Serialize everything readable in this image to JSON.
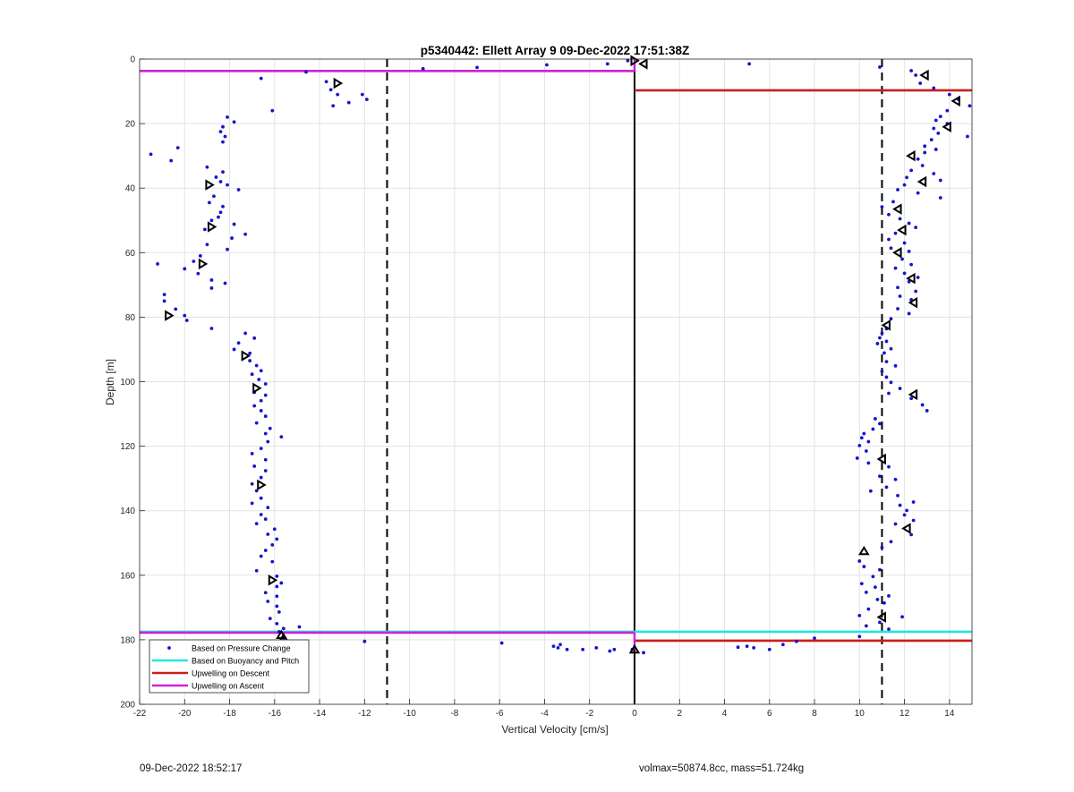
{
  "chart_data": {
    "type": "scatter",
    "title": "p5340442: Ellett Array 9 09-Dec-2022 17:51:38Z",
    "xlabel": "Vertical Velocity [cm/s]",
    "ylabel": "Depth [m]",
    "xlim": [
      -22,
      15
    ],
    "ylim": [
      0,
      200
    ],
    "y_reversed": true,
    "grid": true,
    "legend_position": "bottom-left",
    "x_ticks": [
      -22,
      -20,
      -18,
      -16,
      -14,
      -12,
      -10,
      -8,
      -6,
      -4,
      -2,
      0,
      2,
      4,
      6,
      8,
      10,
      12,
      14
    ],
    "y_ticks": [
      0,
      20,
      40,
      60,
      80,
      100,
      120,
      140,
      160,
      180,
      200
    ],
    "legend": [
      {
        "label": "Based on Pressure Change",
        "color": "#1515cc",
        "style": "dot"
      },
      {
        "label": "Based on Buoyancy and Pitch",
        "color": "#22e5e5",
        "style": "line"
      },
      {
        "label": "Upwelling on Descent",
        "color": "#cc1c1c",
        "style": "line"
      },
      {
        "label": "Upwelling on Ascent",
        "color": "#d020d8",
        "style": "line"
      }
    ],
    "reference_lines": [
      {
        "x": -11,
        "style": "dashed",
        "color": "#000000"
      },
      {
        "x": 11,
        "style": "dashed",
        "color": "#000000"
      },
      {
        "x": 0,
        "style": "solid",
        "color": "#000000"
      }
    ],
    "upwelling_ascent": [
      {
        "y": 3.7,
        "x_from": -22,
        "x_to": 0
      },
      {
        "y": 177.8,
        "x_from": -22,
        "x_to": 0
      }
    ],
    "upwelling_descent": [
      {
        "y": 9.7,
        "x_from": 0,
        "x_to": 15
      },
      {
        "y": 180.3,
        "x_from": 0,
        "x_to": 15
      }
    ],
    "buoyancy_pitch": [
      {
        "y": 177.5,
        "x_from": -22,
        "x_to": 15
      }
    ],
    "series": [
      {
        "name": "Based on Pressure Change",
        "color": "#1515cc",
        "points": [
          [
            -14.6,
            4
          ],
          [
            -9.4,
            3
          ],
          [
            -7.0,
            2.6
          ],
          [
            -3.9,
            1.8
          ],
          [
            -1.2,
            1.5
          ],
          [
            -0.3,
            0.5
          ],
          [
            5.1,
            1.5
          ],
          [
            10.9,
            2.5
          ],
          [
            12.3,
            3.6
          ],
          [
            12.5,
            5
          ],
          [
            -16.6,
            6
          ],
          [
            -13.7,
            7
          ],
          [
            -13.5,
            9.5
          ],
          [
            -13.2,
            11
          ],
          [
            -12.1,
            11
          ],
          [
            -11.9,
            12.5
          ],
          [
            -12.7,
            13.5
          ],
          [
            -13.4,
            14.5
          ],
          [
            -16.1,
            16
          ],
          [
            12.7,
            7.5
          ],
          [
            13.3,
            9
          ],
          [
            14.0,
            11
          ],
          [
            14.4,
            12.5
          ],
          [
            14.9,
            14.5
          ],
          [
            13.9,
            16
          ],
          [
            13.6,
            17.8
          ],
          [
            13.4,
            19
          ],
          [
            13.9,
            20
          ],
          [
            13.3,
            21.5
          ],
          [
            13.5,
            23
          ],
          [
            14.8,
            24
          ],
          [
            13.2,
            25
          ],
          [
            12.9,
            27
          ],
          [
            13.4,
            28
          ],
          [
            12.9,
            29
          ],
          [
            12.6,
            31
          ],
          [
            12.8,
            33
          ],
          [
            12.3,
            34.5
          ],
          [
            13.3,
            35.5
          ],
          [
            12.1,
            36.7
          ],
          [
            13.6,
            37.6
          ],
          [
            12.0,
            39
          ],
          [
            11.7,
            40.5
          ],
          [
            12.6,
            41.5
          ],
          [
            13.6,
            43
          ],
          [
            11.5,
            44.2
          ],
          [
            11.0,
            45.8
          ],
          [
            11.3,
            48.2
          ],
          [
            11.8,
            49.5
          ],
          [
            12.2,
            50.9
          ],
          [
            12.5,
            52.2
          ],
          [
            11.6,
            54
          ],
          [
            11.3,
            55.9
          ],
          [
            12.0,
            57
          ],
          [
            11.4,
            58.6
          ],
          [
            12.2,
            59.6
          ],
          [
            11.9,
            62
          ],
          [
            12.3,
            63.7
          ],
          [
            11.6,
            64.8
          ],
          [
            12.0,
            66.4
          ],
          [
            12.6,
            67.7
          ],
          [
            12.2,
            69
          ],
          [
            11.7,
            70.8
          ],
          [
            12.5,
            72
          ],
          [
            11.8,
            73.5
          ],
          [
            12.3,
            74.6
          ],
          [
            11.7,
            77.4
          ],
          [
            12.2,
            78.9
          ],
          [
            11.4,
            80.5
          ],
          [
            11.2,
            83.6
          ],
          [
            11.0,
            85
          ],
          [
            10.9,
            86.4
          ],
          [
            11.2,
            87.5
          ],
          [
            10.8,
            88.2
          ],
          [
            11.4,
            89.8
          ],
          [
            11.1,
            91.1
          ],
          [
            11.2,
            93.8
          ],
          [
            11.6,
            95.1
          ],
          [
            11.0,
            96.8
          ],
          [
            11.2,
            98.6
          ],
          [
            11.4,
            100.2
          ],
          [
            11.8,
            102.1
          ],
          [
            11.3,
            103.6
          ],
          [
            12.3,
            105.2
          ],
          [
            12.8,
            107.2
          ],
          [
            13.0,
            109
          ],
          [
            10.7,
            111.5
          ],
          [
            10.9,
            113
          ],
          [
            10.6,
            114.7
          ],
          [
            10.2,
            116.1
          ],
          [
            10.1,
            117.4
          ],
          [
            10.4,
            118.6
          ],
          [
            10.0,
            119.8
          ],
          [
            10.3,
            121.5
          ],
          [
            9.9,
            123.7
          ],
          [
            10.4,
            125.2
          ],
          [
            11.3,
            126.4
          ],
          [
            10.9,
            129.3
          ],
          [
            11.6,
            130.3
          ],
          [
            11.2,
            132.7
          ],
          [
            10.5,
            133.9
          ],
          [
            11.7,
            135.3
          ],
          [
            12.4,
            137.3
          ],
          [
            11.8,
            138.3
          ],
          [
            12.1,
            139.9
          ],
          [
            12.0,
            141.3
          ],
          [
            12.4,
            143
          ],
          [
            11.6,
            144.1
          ],
          [
            12.3,
            147.4
          ],
          [
            11.4,
            149.6
          ],
          [
            11.0,
            151.4
          ],
          [
            10.0,
            155.6
          ],
          [
            10.2,
            157.3
          ],
          [
            10.9,
            158.3
          ],
          [
            10.6,
            160.4
          ],
          [
            10.1,
            162.6
          ],
          [
            10.7,
            163.7
          ],
          [
            10.3,
            165.3
          ],
          [
            11.3,
            166.4
          ],
          [
            10.8,
            167.5
          ],
          [
            11.1,
            168.6
          ],
          [
            10.4,
            170.5
          ],
          [
            10.0,
            172.5
          ],
          [
            11.9,
            172.9
          ],
          [
            10.9,
            174.6
          ],
          [
            10.3,
            175.7
          ],
          [
            11.3,
            176.7
          ],
          [
            10.0,
            179
          ],
          [
            -18.1,
            18
          ],
          [
            -17.8,
            19.5
          ],
          [
            -18.3,
            21
          ],
          [
            -18.4,
            22.5
          ],
          [
            -18.2,
            24
          ],
          [
            -18.3,
            25.7
          ],
          [
            -20.3,
            27.5
          ],
          [
            -21.5,
            29.5
          ],
          [
            -20.6,
            31.5
          ],
          [
            -19.0,
            33.5
          ],
          [
            -18.3,
            35
          ],
          [
            -18.6,
            36.6
          ],
          [
            -18.4,
            38
          ],
          [
            -18.1,
            39
          ],
          [
            -17.6,
            40.5
          ],
          [
            -18.7,
            42.5
          ],
          [
            -18.9,
            44.5
          ],
          [
            -18.3,
            45.7
          ],
          [
            -18.4,
            47.5
          ],
          [
            -18.5,
            49
          ],
          [
            -18.8,
            50
          ],
          [
            -17.8,
            51.2
          ],
          [
            -19.1,
            52.8
          ],
          [
            -17.3,
            54.3
          ],
          [
            -17.9,
            55.5
          ],
          [
            -19.0,
            57.5
          ],
          [
            -18.1,
            59
          ],
          [
            -19.3,
            61
          ],
          [
            -19.6,
            62.7
          ],
          [
            -21.2,
            63.5
          ],
          [
            -20.0,
            65
          ],
          [
            -19.4,
            66.5
          ],
          [
            -18.8,
            68.5
          ],
          [
            -18.2,
            69.5
          ],
          [
            -18.8,
            71
          ],
          [
            -20.9,
            73
          ],
          [
            -20.9,
            75
          ],
          [
            -20.4,
            77.5
          ],
          [
            -20.0,
            79.5
          ],
          [
            -19.9,
            81
          ],
          [
            -18.8,
            83.5
          ],
          [
            -17.3,
            85
          ],
          [
            -16.9,
            86.5
          ],
          [
            -17.6,
            88
          ],
          [
            -17.8,
            90
          ],
          [
            -17.1,
            91.2
          ],
          [
            -17.1,
            93.5
          ],
          [
            -16.8,
            95
          ],
          [
            -16.6,
            96.6
          ],
          [
            -17.0,
            97.7
          ],
          [
            -16.7,
            99.3
          ],
          [
            -16.4,
            100.7
          ],
          [
            -16.9,
            103.3
          ],
          [
            -16.4,
            104.2
          ],
          [
            -16.6,
            105.9
          ],
          [
            -16.9,
            107.5
          ],
          [
            -16.6,
            109
          ],
          [
            -16.4,
            110.7
          ],
          [
            -16.8,
            112.8
          ],
          [
            -16.2,
            114.5
          ],
          [
            -16.4,
            116.1
          ],
          [
            -15.7,
            117.1
          ],
          [
            -16.3,
            118.6
          ],
          [
            -16.6,
            120.7
          ],
          [
            -17.0,
            122.3
          ],
          [
            -16.4,
            124.2
          ],
          [
            -16.9,
            126.2
          ],
          [
            -16.4,
            127.6
          ],
          [
            -16.6,
            129.7
          ],
          [
            -17.0,
            131.7
          ],
          [
            -16.8,
            133.8
          ],
          [
            -16.6,
            136.1
          ],
          [
            -17.0,
            137.7
          ],
          [
            -16.3,
            139
          ],
          [
            -16.6,
            141.2
          ],
          [
            -16.4,
            142.6
          ],
          [
            -16.8,
            144
          ],
          [
            -16.0,
            145.7
          ],
          [
            -16.3,
            147.3
          ],
          [
            -15.9,
            148.8
          ],
          [
            -16.1,
            150.6
          ],
          [
            -16.4,
            152.3
          ],
          [
            -16.6,
            154.1
          ],
          [
            -16.1,
            155.8
          ],
          [
            -16.8,
            158.6
          ],
          [
            -15.9,
            160.3
          ],
          [
            -15.7,
            162.4
          ],
          [
            -15.9,
            163.5
          ],
          [
            -16.4,
            165.4
          ],
          [
            -15.9,
            166.5
          ],
          [
            -16.3,
            168.1
          ],
          [
            -15.9,
            169.6
          ],
          [
            -15.8,
            171.4
          ],
          [
            -16.2,
            173.4
          ],
          [
            -15.9,
            175
          ],
          [
            -15.6,
            176.5
          ],
          [
            -14.9,
            176
          ],
          [
            -15.8,
            177.5
          ],
          [
            -15.6,
            179.5
          ],
          [
            -12.0,
            180.5
          ],
          [
            -5.9,
            181
          ],
          [
            -3.6,
            182
          ],
          [
            -3.4,
            182.5
          ],
          [
            -3.3,
            181.5
          ],
          [
            -3.0,
            183
          ],
          [
            -2.3,
            183
          ],
          [
            -1.7,
            182.5
          ],
          [
            -1.1,
            183.5
          ],
          [
            -0.9,
            183
          ],
          [
            -0.1,
            183
          ],
          [
            0.4,
            184
          ],
          [
            4.6,
            182.3
          ],
          [
            5.0,
            182
          ],
          [
            5.3,
            182.5
          ],
          [
            6.0,
            183
          ],
          [
            6.6,
            181.5
          ],
          [
            7.2,
            180.5
          ],
          [
            8.0,
            179.5
          ]
        ]
      },
      {
        "name": "",
        "marker": "open-triangle",
        "color": "#000000",
        "points": [
          [
            0,
            0.5,
            "r"
          ],
          [
            0.4,
            1.5,
            "l"
          ],
          [
            -13.2,
            7.5,
            "r"
          ],
          [
            12.9,
            5,
            "l"
          ],
          [
            14.3,
            13,
            "l"
          ],
          [
            13.9,
            21,
            "l"
          ],
          [
            12.3,
            30,
            "l"
          ],
          [
            12.8,
            38,
            "l"
          ],
          [
            11.7,
            46.5,
            "l"
          ],
          [
            11.9,
            53,
            "l"
          ],
          [
            11.7,
            60,
            "l"
          ],
          [
            12.3,
            68,
            "l"
          ],
          [
            12.4,
            75.5,
            "l"
          ],
          [
            11.2,
            82.5,
            "l"
          ],
          [
            12.4,
            104,
            "l"
          ],
          [
            11.0,
            124,
            "l"
          ],
          [
            12.1,
            145.5,
            "l"
          ],
          [
            11.0,
            173,
            "l"
          ],
          [
            -18.9,
            39,
            "r"
          ],
          [
            -18.8,
            52,
            "r"
          ],
          [
            -19.2,
            63.5,
            "r"
          ],
          [
            -20.7,
            79.5,
            "r"
          ],
          [
            -17.3,
            92,
            "r"
          ],
          [
            -16.8,
            102,
            "r"
          ],
          [
            -16.6,
            132,
            "r"
          ],
          [
            -16.1,
            161.5,
            "r"
          ],
          [
            -15.7,
            178.5,
            "u"
          ],
          [
            -15.6,
            179.5,
            "u"
          ],
          [
            10.2,
            152.5,
            "u"
          ],
          [
            0,
            183,
            "u"
          ]
        ]
      }
    ]
  },
  "footer": {
    "timestamp": "09-Dec-2022 18:52:17",
    "summary": "volmax=50874.8cc, mass=51.724kg"
  }
}
